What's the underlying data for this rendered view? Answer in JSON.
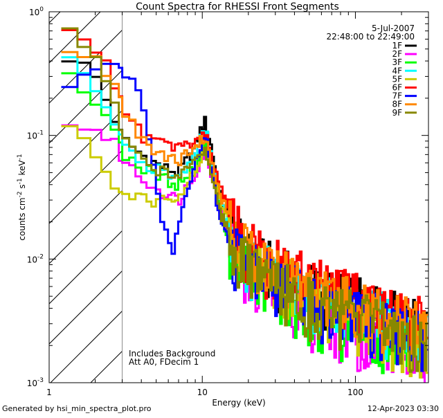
{
  "chart_data": {
    "type": "line",
    "title": "Count Spectra for RHESSI Front Segments",
    "xlabel": "Energy (keV)",
    "ylabel_parts": [
      "counts cm",
      "-2",
      " s",
      "-1",
      " keV",
      "-1"
    ],
    "xscale": "log",
    "yscale": "log",
    "xlim": [
      1.0,
      300
    ],
    "ylim": [
      0.001,
      1.0
    ],
    "x_tick_labels": [
      {
        "value": 1,
        "label": "1"
      },
      {
        "value": 10,
        "label": "10"
      },
      {
        "value": 100,
        "label": "100"
      }
    ],
    "y_tick_labels": [
      {
        "value": 1,
        "base": "10",
        "exp": "0"
      },
      {
        "value": 0.1,
        "base": "10",
        "exp": "-1"
      },
      {
        "value": 0.01,
        "base": "10",
        "exp": "-2"
      },
      {
        "value": 0.001,
        "base": "10",
        "exp": "-3"
      }
    ],
    "hatched_region": {
      "x_from": 1.0,
      "x_to": 3.0,
      "meaning": "excluded low-energy range"
    },
    "date_text": "5-Jul-2007",
    "time_range_text": "22:48:00 to 22:49:00",
    "annotations": [
      "Includes Background",
      "Att A0, FDecim 1"
    ],
    "series": [
      {
        "name": "1F",
        "color": "#000000",
        "anchors": [
          [
            1.2,
            0.44
          ],
          [
            1.5,
            0.42
          ],
          [
            2.0,
            0.3
          ],
          [
            2.6,
            0.15
          ],
          [
            3.0,
            0.095
          ],
          [
            4.0,
            0.07
          ],
          [
            5.5,
            0.055
          ],
          [
            7.0,
            0.05
          ],
          [
            9.0,
            0.08
          ],
          [
            10.0,
            0.12
          ],
          [
            10.5,
            0.13
          ],
          [
            11.5,
            0.08
          ],
          [
            13.0,
            0.035
          ],
          [
            16.0,
            0.016
          ],
          [
            20.0,
            0.011
          ],
          [
            30.0,
            0.0085
          ],
          [
            50.0,
            0.006
          ],
          [
            80.0,
            0.005
          ],
          [
            150.0,
            0.004
          ],
          [
            250.0,
            0.003
          ],
          [
            300.0,
            0.0028
          ]
        ]
      },
      {
        "name": "2F",
        "color": "#ff00ff",
        "anchors": [
          [
            1.2,
            0.14
          ],
          [
            1.5,
            0.12
          ],
          [
            2.0,
            0.11
          ],
          [
            2.6,
            0.09
          ],
          [
            3.0,
            0.065
          ],
          [
            4.0,
            0.045
          ],
          [
            5.5,
            0.035
          ],
          [
            7.0,
            0.03
          ],
          [
            9.0,
            0.05
          ],
          [
            10.0,
            0.07
          ],
          [
            10.5,
            0.072
          ],
          [
            11.5,
            0.05
          ],
          [
            13.0,
            0.025
          ],
          [
            16.0,
            0.012
          ],
          [
            20.0,
            0.008
          ],
          [
            30.0,
            0.0055
          ],
          [
            50.0,
            0.004
          ],
          [
            80.0,
            0.003
          ],
          [
            150.0,
            0.0022
          ],
          [
            250.0,
            0.0018
          ],
          [
            300.0,
            0.0015
          ]
        ]
      },
      {
        "name": "3F",
        "color": "#00ff00",
        "anchors": [
          [
            1.2,
            0.3
          ],
          [
            1.5,
            0.28
          ],
          [
            2.0,
            0.2
          ],
          [
            2.6,
            0.12
          ],
          [
            3.0,
            0.075
          ],
          [
            4.0,
            0.055
          ],
          [
            5.5,
            0.045
          ],
          [
            7.0,
            0.04
          ],
          [
            9.0,
            0.055
          ],
          [
            10.0,
            0.075
          ],
          [
            10.5,
            0.08
          ],
          [
            11.5,
            0.05
          ],
          [
            13.0,
            0.025
          ],
          [
            16.0,
            0.012
          ],
          [
            20.0,
            0.008
          ],
          [
            30.0,
            0.006
          ],
          [
            50.0,
            0.0042
          ],
          [
            80.0,
            0.0033
          ],
          [
            150.0,
            0.0026
          ],
          [
            250.0,
            0.0021
          ],
          [
            300.0,
            0.0019
          ]
        ]
      },
      {
        "name": "4F",
        "color": "#00ffff",
        "anchors": [
          [
            1.2,
            0.48
          ],
          [
            1.5,
            0.4
          ],
          [
            2.0,
            0.25
          ],
          [
            2.6,
            0.13
          ],
          [
            3.0,
            0.085
          ],
          [
            4.0,
            0.06
          ],
          [
            5.5,
            0.05
          ],
          [
            7.0,
            0.045
          ],
          [
            9.0,
            0.07
          ],
          [
            10.0,
            0.1
          ],
          [
            10.5,
            0.11
          ],
          [
            11.5,
            0.07
          ],
          [
            13.0,
            0.03
          ],
          [
            16.0,
            0.015
          ],
          [
            20.0,
            0.0105
          ],
          [
            30.0,
            0.0075
          ],
          [
            50.0,
            0.0055
          ],
          [
            80.0,
            0.0045
          ],
          [
            150.0,
            0.0035
          ],
          [
            250.0,
            0.0028
          ],
          [
            300.0,
            0.0025
          ]
        ]
      },
      {
        "name": "5F",
        "color": "#cccc00",
        "anchors": [
          [
            1.2,
            0.13
          ],
          [
            1.5,
            0.1
          ],
          [
            2.0,
            0.07
          ],
          [
            2.6,
            0.045
          ],
          [
            3.0,
            0.032
          ],
          [
            4.0,
            0.03
          ],
          [
            5.5,
            0.03
          ],
          [
            7.0,
            0.033
          ],
          [
            9.0,
            0.05
          ],
          [
            10.0,
            0.065
          ],
          [
            10.5,
            0.07
          ],
          [
            11.5,
            0.05
          ],
          [
            13.0,
            0.03
          ],
          [
            16.0,
            0.016
          ],
          [
            20.0,
            0.012
          ],
          [
            30.0,
            0.008
          ],
          [
            50.0,
            0.0055
          ],
          [
            80.0,
            0.004
          ],
          [
            150.0,
            0.003
          ],
          [
            250.0,
            0.0022
          ],
          [
            300.0,
            0.0018
          ]
        ]
      },
      {
        "name": "6F",
        "color": "#ff0000",
        "anchors": [
          [
            1.2,
            0.9
          ],
          [
            1.5,
            0.7
          ],
          [
            2.0,
            0.5
          ],
          [
            2.6,
            0.3
          ],
          [
            3.0,
            0.18
          ],
          [
            4.0,
            0.1
          ],
          [
            5.5,
            0.085
          ],
          [
            7.0,
            0.08
          ],
          [
            9.0,
            0.09
          ],
          [
            10.0,
            0.1
          ],
          [
            10.5,
            0.1
          ],
          [
            11.5,
            0.07
          ],
          [
            13.0,
            0.04
          ],
          [
            16.0,
            0.02
          ],
          [
            20.0,
            0.013
          ],
          [
            30.0,
            0.0095
          ],
          [
            50.0,
            0.007
          ],
          [
            80.0,
            0.0055
          ],
          [
            150.0,
            0.0042
          ],
          [
            250.0,
            0.0033
          ],
          [
            300.0,
            0.003
          ]
        ]
      },
      {
        "name": "7F",
        "color": "#0000ff",
        "anchors": [
          [
            1.2,
            0.24
          ],
          [
            1.5,
            0.3
          ],
          [
            2.0,
            0.35
          ],
          [
            2.6,
            0.38
          ],
          [
            3.0,
            0.36
          ],
          [
            4.0,
            0.2
          ],
          [
            5.0,
            0.05
          ],
          [
            5.5,
            0.02
          ],
          [
            6.5,
            0.012
          ],
          [
            7.5,
            0.025
          ],
          [
            9.0,
            0.06
          ],
          [
            10.0,
            0.09
          ],
          [
            10.5,
            0.1
          ],
          [
            11.5,
            0.06
          ],
          [
            13.0,
            0.02
          ],
          [
            16.0,
            0.012
          ],
          [
            20.0,
            0.009
          ],
          [
            30.0,
            0.007
          ],
          [
            50.0,
            0.005
          ],
          [
            80.0,
            0.004
          ],
          [
            150.0,
            0.0033
          ],
          [
            250.0,
            0.0026
          ],
          [
            300.0,
            0.0024
          ]
        ]
      },
      {
        "name": "8F",
        "color": "#ff8800",
        "anchors": [
          [
            1.2,
            0.5
          ],
          [
            1.5,
            0.48
          ],
          [
            2.0,
            0.4
          ],
          [
            2.6,
            0.28
          ],
          [
            3.0,
            0.17
          ],
          [
            4.0,
            0.09
          ],
          [
            5.5,
            0.07
          ],
          [
            7.0,
            0.06
          ],
          [
            9.0,
            0.08
          ],
          [
            10.0,
            0.095
          ],
          [
            10.5,
            0.1
          ],
          [
            11.5,
            0.065
          ],
          [
            13.0,
            0.035
          ],
          [
            16.0,
            0.018
          ],
          [
            20.0,
            0.012
          ],
          [
            30.0,
            0.0085
          ],
          [
            50.0,
            0.0062
          ],
          [
            80.0,
            0.0048
          ],
          [
            150.0,
            0.0037
          ],
          [
            250.0,
            0.003
          ],
          [
            300.0,
            0.0027
          ]
        ]
      },
      {
        "name": "9F",
        "color": "#888800",
        "anchors": [
          [
            1.2,
            0.75
          ],
          [
            1.5,
            0.65
          ],
          [
            2.0,
            0.4
          ],
          [
            2.6,
            0.2
          ],
          [
            3.0,
            0.1
          ],
          [
            4.0,
            0.06
          ],
          [
            5.5,
            0.052
          ],
          [
            7.0,
            0.05
          ],
          [
            9.0,
            0.065
          ],
          [
            10.0,
            0.075
          ],
          [
            10.5,
            0.075
          ],
          [
            11.5,
            0.05
          ],
          [
            13.0,
            0.025
          ],
          [
            16.0,
            0.013
          ],
          [
            20.0,
            0.009
          ],
          [
            30.0,
            0.0065
          ],
          [
            50.0,
            0.0048
          ],
          [
            80.0,
            0.0038
          ],
          [
            150.0,
            0.003
          ],
          [
            250.0,
            0.0024
          ],
          [
            300.0,
            0.0021
          ]
        ]
      }
    ]
  },
  "footer": {
    "generated_by": "Generated by hsi_min_spectra_plot.pro",
    "timestamp": "12-Apr-2023 03:30"
  }
}
